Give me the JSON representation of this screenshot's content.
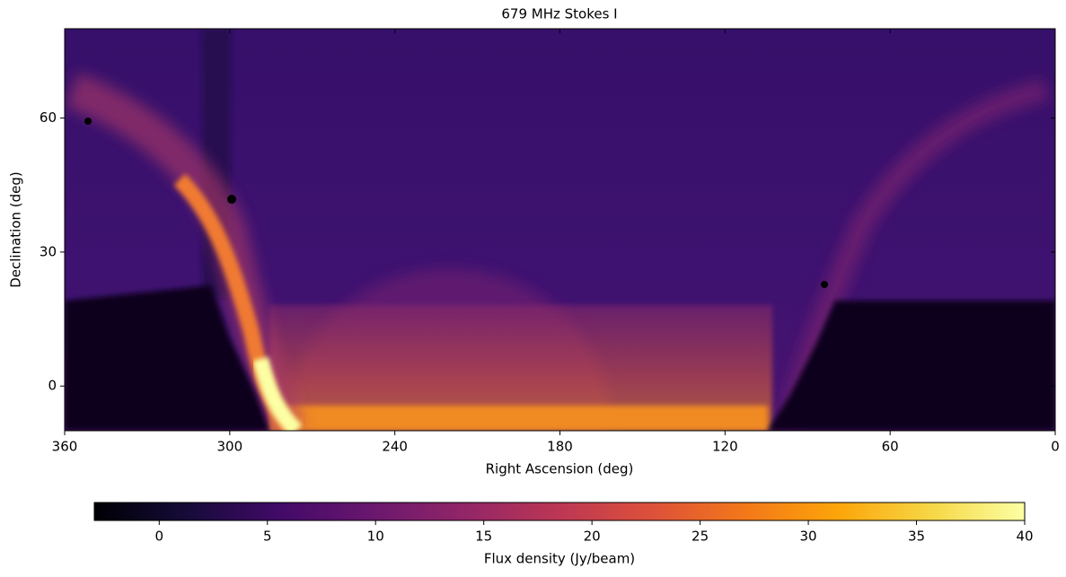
{
  "chart_data": {
    "type": "image",
    "title": "679 MHz Stokes I",
    "x_label": "Right Ascension (deg)",
    "y_label": "Declination (deg)",
    "xlim": [
      360,
      0
    ],
    "ylim": [
      -10,
      80
    ],
    "xticks": [
      360,
      300,
      240,
      180,
      120,
      60,
      0
    ],
    "yticks": [
      0,
      30,
      60
    ],
    "colormap": "inferno",
    "colorbar": {
      "label": "Flux density (Jy/beam)",
      "lim": [
        -3,
        40
      ],
      "ticks": [
        0,
        5,
        10,
        15,
        20,
        25,
        30,
        35,
        40
      ]
    }
  }
}
